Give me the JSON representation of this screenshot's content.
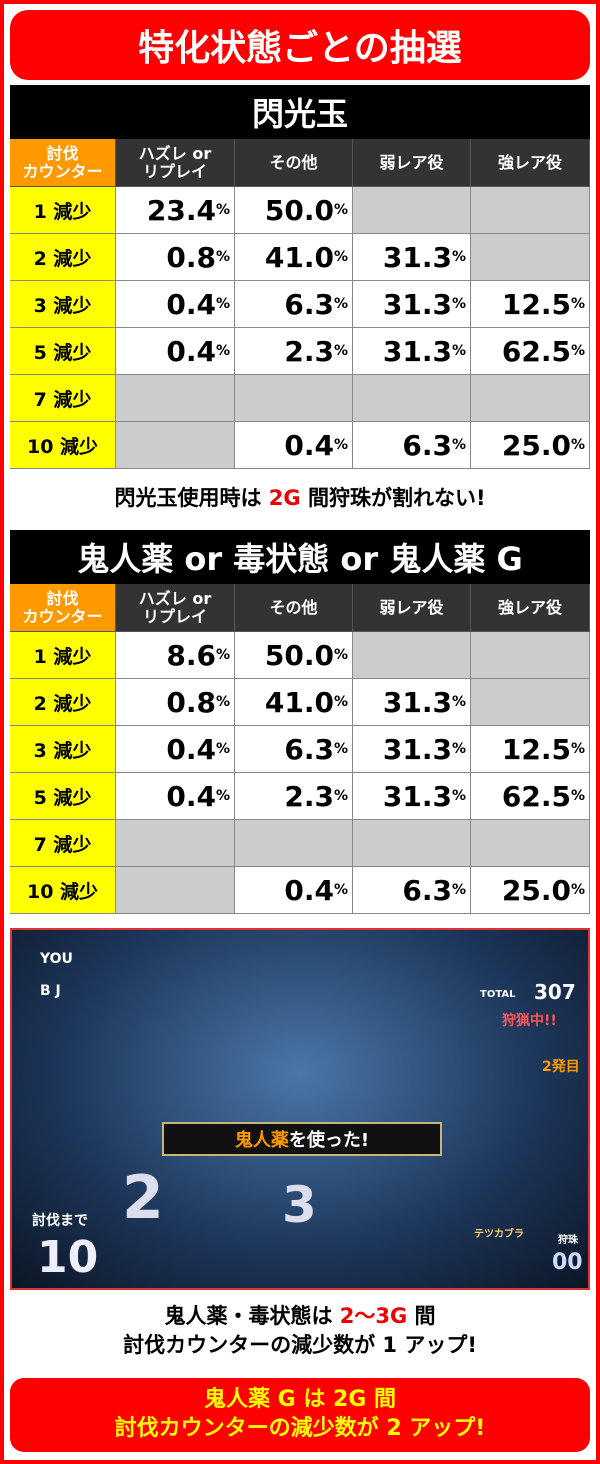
{
  "title": "特化状態ごとの抽選",
  "headers": [
    "討伐\nカウンター",
    "ハズレ or\nリプレイ",
    "その他",
    "弱レア役",
    "強レア役"
  ],
  "tables": [
    {
      "name": "閃光玉",
      "rows": [
        [
          "1 減少",
          "23.4",
          "50.0",
          "",
          ""
        ],
        [
          "2 減少",
          "0.8",
          "41.0",
          "31.3",
          ""
        ],
        [
          "3 減少",
          "0.4",
          "6.3",
          "31.3",
          "12.5"
        ],
        [
          "5 減少",
          "0.4",
          "2.3",
          "31.3",
          "62.5"
        ],
        [
          "7 減少",
          "",
          "",
          "",
          ""
        ],
        [
          "10 減少",
          "",
          "0.4",
          "6.3",
          "25.0"
        ]
      ]
    },
    {
      "name": "鬼人薬 or 毒状態 or 鬼人薬 G",
      "rows": [
        [
          "1 減少",
          "8.6",
          "50.0",
          "",
          ""
        ],
        [
          "2 減少",
          "0.8",
          "41.0",
          "31.3",
          ""
        ],
        [
          "3 減少",
          "0.4",
          "6.3",
          "31.3",
          "12.5"
        ],
        [
          "5 減少",
          "0.4",
          "2.3",
          "31.3",
          "62.5"
        ],
        [
          "7 減少",
          "",
          "",
          "",
          ""
        ],
        [
          "10 減少",
          "",
          "0.4",
          "6.3",
          "25.0"
        ]
      ]
    }
  ],
  "percent": "%",
  "note1": {
    "a": "閃光玉使用時は ",
    "b": "2G",
    "c": " 間狩珠が割れない!"
  },
  "game": {
    "you": "YOU",
    "bj": "B J",
    "total_label": "TOTAL",
    "total": "307",
    "status": "狩猟中!!",
    "round": "2発目",
    "banner_a": "鬼人薬",
    "banner_b": "を使った!",
    "counter_label": "討伐まで",
    "counter": "10",
    "num1": "2",
    "num2": "3",
    "monster": "テツカブラ",
    "hunt_label": "狩珠",
    "hunt": "00"
  },
  "note2": {
    "l1a": "鬼人薬・毒状態は ",
    "l1b": "2〜3G",
    "l1c": " 間",
    "l2": "討伐カウンターの減少数が 1 アップ!"
  },
  "note3": {
    "l1": "鬼人薬 G は 2G 間",
    "l2": "討伐カウンターの減少数が 2 アップ!"
  },
  "colors": {
    "accent": "#ff0000",
    "label": "#ffff00",
    "header_orange": "#ff9900",
    "empty": "#cccccc"
  }
}
